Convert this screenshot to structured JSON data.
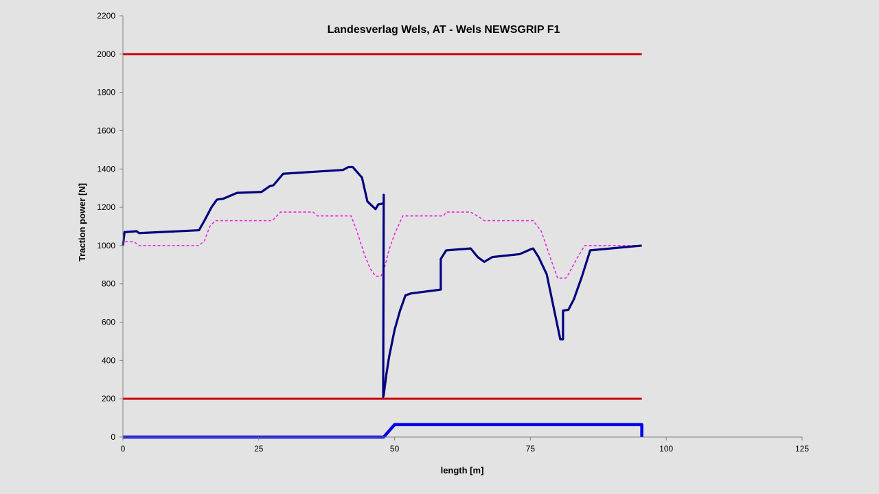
{
  "chart_data": {
    "type": "line",
    "title": "Landesverlag Wels,  AT - Wels     NEWSGRIP  F1",
    "xlabel": "length [m]",
    "ylabel": "Traction power [N]",
    "xlim": [
      0,
      125
    ],
    "ylim": [
      0,
      2200
    ],
    "x_ticks": [
      "0",
      "25",
      "50",
      "75",
      "100",
      "125"
    ],
    "y_ticks": [
      "0",
      "200",
      "400",
      "600",
      "800",
      "1000",
      "1200",
      "1400",
      "1600",
      "1800",
      "2000",
      "2200"
    ],
    "grid": false,
    "legend": "none",
    "series": [
      {
        "color": "#cc0000",
        "style": "solid",
        "x": [
          0,
          95.5
        ],
        "y": [
          2000,
          2000
        ]
      },
      {
        "color": "#cc0000",
        "style": "solid",
        "x": [
          0,
          95.5
        ],
        "y": [
          200,
          200
        ]
      },
      {
        "color": "#ee22dd",
        "style": "dashed",
        "x": [
          0,
          0.3,
          2,
          3,
          5,
          14,
          15,
          16,
          17,
          20,
          27.5,
          29,
          35,
          35.8,
          42,
          43,
          44.5,
          45.5,
          46.5,
          47.5,
          48.3,
          49,
          50,
          51.5,
          59,
          59.5,
          64,
          65.5,
          66.5,
          75.5,
          77,
          78.5,
          80,
          81.5,
          82,
          83.5,
          85,
          95.5
        ],
        "y": [
          1000,
          1020,
          1020,
          1000,
          1000,
          1000,
          1025,
          1100,
          1130,
          1130,
          1130,
          1175,
          1175,
          1155,
          1155,
          1080,
          950,
          880,
          840,
          840,
          900,
          980,
          1060,
          1155,
          1155,
          1175,
          1175,
          1150,
          1130,
          1130,
          1075,
          950,
          830,
          830,
          850,
          930,
          1000,
          1000
        ]
      },
      {
        "color": "#000080",
        "style": "solid",
        "x": [
          0,
          0.3,
          2.5,
          3,
          14,
          15,
          16.3,
          17.3,
          18.5,
          21,
          25.5,
          27,
          27.7,
          29.5,
          35,
          40.5,
          41.5,
          42.3,
          44,
          45,
          46.5,
          47,
          48,
          48,
          47.9,
          48,
          48.5,
          49,
          50,
          51,
          52,
          53,
          58.5,
          58.5,
          59.5,
          64,
          65.3,
          66.5,
          68,
          73,
          75,
          75.5,
          76.5,
          78,
          80.5,
          81,
          81,
          82,
          83,
          84.5,
          86,
          95.5
        ],
        "y": [
          1000,
          1070,
          1075,
          1065,
          1080,
          1130,
          1200,
          1240,
          1245,
          1275,
          1280,
          1310,
          1315,
          1375,
          1385,
          1395,
          1410,
          1410,
          1355,
          1230,
          1190,
          1215,
          1220,
          1265,
          210,
          220,
          330,
          420,
          560,
          660,
          740,
          750,
          770,
          930,
          975,
          985,
          940,
          915,
          940,
          955,
          980,
          985,
          940,
          850,
          510,
          510,
          660,
          665,
          720,
          840,
          975,
          1000
        ]
      },
      {
        "color": "#0000ee",
        "style": "solid",
        "x": [
          0,
          48,
          50,
          95.5,
          95.5
        ],
        "y": [
          0,
          0,
          65,
          65,
          0
        ]
      }
    ]
  }
}
